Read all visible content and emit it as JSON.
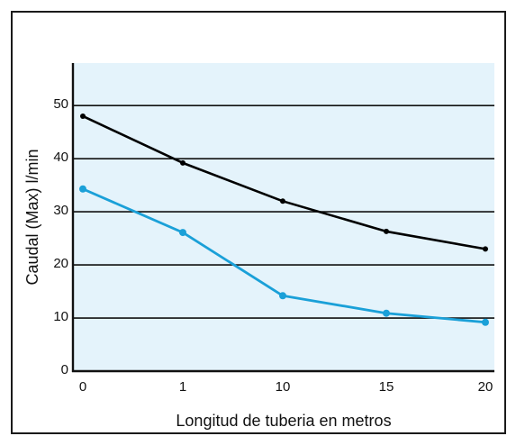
{
  "chart_data": {
    "type": "line",
    "title": "",
    "xlabel": "Longitud de tuberia en metros",
    "ylabel": "Caudal (Max)  l/min",
    "x_ticks": [
      "0",
      "1",
      "10",
      "15",
      "20"
    ],
    "y_ticks": [
      "0",
      "10",
      "20",
      "30",
      "40",
      "50"
    ],
    "ylim": [
      0,
      58
    ],
    "grid": "horizontal",
    "plot_background": "#e4f3fb",
    "series": [
      {
        "color": "#000000",
        "x": [
          0,
          1,
          10,
          15,
          20
        ],
        "values": [
          48,
          39.2,
          32,
          26.3,
          23
        ]
      },
      {
        "color": "#1aa0d8",
        "x": [
          0,
          1,
          10,
          15,
          20
        ],
        "values": [
          34.3,
          26.1,
          14.2,
          10.9,
          9.2
        ]
      }
    ]
  }
}
